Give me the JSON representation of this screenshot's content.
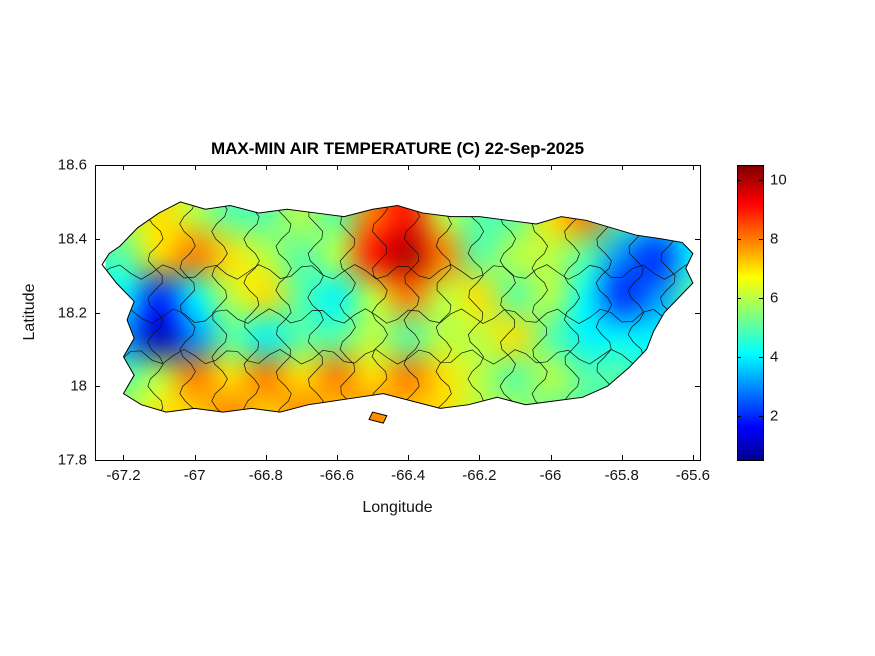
{
  "chart_data": {
    "type": "heatmap",
    "title": "MAX-MIN AIR TEMPERATURE (C) 22-Sep-2025",
    "xlabel": "Longitude",
    "ylabel": "Latitude",
    "xlim": [
      -67.28,
      -65.58
    ],
    "ylim": [
      17.8,
      18.6
    ],
    "x_ticks": [
      -67.2,
      -67,
      -66.8,
      -66.6,
      -66.4,
      -66.2,
      -66,
      -65.8,
      -65.6
    ],
    "x_tick_labels": [
      "-67.2",
      "-67",
      "-66.8",
      "-66.6",
      "-66.4",
      "-66.2",
      "-66",
      "-65.8",
      "-65.6"
    ],
    "y_ticks": [
      17.8,
      18,
      18.2,
      18.4,
      18.6
    ],
    "y_tick_labels": [
      "17.8",
      "18",
      "18.2",
      "18.4",
      "18.6"
    ],
    "grid_on": false,
    "legend": "colorbar-right",
    "colorbar": {
      "ticks": [
        2,
        4,
        6,
        8,
        10
      ],
      "tick_labels": [
        "2",
        "4",
        "6",
        "8",
        "10"
      ],
      "value_range": [
        0.5,
        10.5
      ],
      "colormap": "jet",
      "stops": [
        [
          0.0,
          "#00008F"
        ],
        [
          0.11,
          "#0000FF"
        ],
        [
          0.36,
          "#00FFFF"
        ],
        [
          0.62,
          "#FFFF00"
        ],
        [
          0.87,
          "#FF0000"
        ],
        [
          1.0,
          "#800000"
        ]
      ]
    },
    "grid": {
      "lon_edge_min": -67.25,
      "lon_edge_max": -65.55,
      "lat_edge_max": 18.52,
      "lat_edge_min": 17.86,
      "note": "temperature-difference values (C), rows north to south, cols west (-67.2) to east (-65.6) step 0.1 deg",
      "row_lats": [
        18.45,
        18.35,
        18.25,
        18.15,
        18.05,
        17.95
      ],
      "col_lons": [
        -67.2,
        -67.1,
        -67.0,
        -66.9,
        -66.8,
        -66.7,
        -66.6,
        -66.5,
        -66.4,
        -66.3,
        -66.2,
        -66.1,
        -66.0,
        -65.9,
        -65.8,
        -65.7,
        -65.6
      ],
      "values": [
        [
          6,
          7,
          6,
          5,
          5,
          6,
          5,
          8,
          9,
          6,
          5,
          5,
          7,
          8,
          5,
          4,
          4
        ],
        [
          5,
          7,
          8,
          7,
          6,
          5,
          6,
          9,
          10,
          8,
          5,
          6,
          6,
          5,
          3,
          2,
          4
        ],
        [
          4,
          2,
          4,
          6,
          7,
          5,
          4,
          6,
          8,
          6,
          7,
          5,
          6,
          4,
          2,
          3,
          5
        ],
        [
          3,
          1,
          3,
          5,
          4,
          5,
          5,
          6,
          5,
          6,
          6,
          7,
          5,
          4,
          4,
          4,
          4
        ],
        [
          5,
          6,
          8,
          7,
          8,
          7,
          8,
          7,
          8,
          7,
          6,
          5,
          6,
          5,
          5,
          4,
          4
        ],
        [
          6,
          7,
          7,
          8,
          7,
          8,
          7,
          8,
          7,
          7,
          6,
          6,
          5,
          5,
          4,
          4,
          4
        ]
      ]
    },
    "island_outline": [
      [
        -67.21,
        18.38
      ],
      [
        -67.16,
        18.43
      ],
      [
        -67.1,
        18.47
      ],
      [
        -67.04,
        18.5
      ],
      [
        -66.97,
        18.48
      ],
      [
        -66.9,
        18.49
      ],
      [
        -66.82,
        18.47
      ],
      [
        -66.74,
        18.48
      ],
      [
        -66.66,
        18.47
      ],
      [
        -66.58,
        18.46
      ],
      [
        -66.5,
        18.48
      ],
      [
        -66.43,
        18.49
      ],
      [
        -66.36,
        18.47
      ],
      [
        -66.28,
        18.46
      ],
      [
        -66.2,
        18.46
      ],
      [
        -66.12,
        18.45
      ],
      [
        -66.04,
        18.44
      ],
      [
        -65.97,
        18.46
      ],
      [
        -65.9,
        18.45
      ],
      [
        -65.83,
        18.43
      ],
      [
        -65.76,
        18.41
      ],
      [
        -65.69,
        18.4
      ],
      [
        -65.63,
        18.39
      ],
      [
        -65.6,
        18.36
      ],
      [
        -65.62,
        18.32
      ],
      [
        -65.6,
        18.28
      ],
      [
        -65.64,
        18.24
      ],
      [
        -65.68,
        18.2
      ],
      [
        -65.71,
        18.15
      ],
      [
        -65.73,
        18.1
      ],
      [
        -65.78,
        18.05
      ],
      [
        -65.84,
        18.0
      ],
      [
        -65.91,
        17.97
      ],
      [
        -65.99,
        17.96
      ],
      [
        -66.07,
        17.95
      ],
      [
        -66.15,
        17.97
      ],
      [
        -66.23,
        17.95
      ],
      [
        -66.31,
        17.94
      ],
      [
        -66.39,
        17.96
      ],
      [
        -66.47,
        17.98
      ],
      [
        -66.54,
        17.97
      ],
      [
        -66.61,
        17.96
      ],
      [
        -66.68,
        17.95
      ],
      [
        -66.76,
        17.93
      ],
      [
        -66.84,
        17.94
      ],
      [
        -66.92,
        17.93
      ],
      [
        -67.0,
        17.94
      ],
      [
        -67.08,
        17.93
      ],
      [
        -67.15,
        17.95
      ],
      [
        -67.2,
        17.98
      ],
      [
        -67.17,
        18.03
      ],
      [
        -67.2,
        18.08
      ],
      [
        -67.17,
        18.13
      ],
      [
        -67.19,
        18.18
      ],
      [
        -67.17,
        18.23
      ],
      [
        -67.22,
        18.28
      ],
      [
        -67.26,
        18.33
      ],
      [
        -67.24,
        18.36
      ]
    ],
    "islets": [
      [
        [
          -66.5,
          17.93
        ],
        [
          -66.46,
          17.92
        ],
        [
          -66.47,
          17.9
        ],
        [
          -66.51,
          17.91
        ]
      ]
    ],
    "boundaries": {
      "vertical_lons": [
        -67.11,
        -67.02,
        -66.93,
        -66.84,
        -66.75,
        -66.66,
        -66.57,
        -66.48,
        -66.39,
        -66.3,
        -66.21,
        -66.12,
        -66.03,
        -65.94,
        -65.85,
        -65.76,
        -65.67
      ],
      "horizontal_lats": [
        18.08,
        18.19,
        18.31
      ]
    },
    "colors": {
      "axis": "#000000",
      "boundary_lines": "#111111",
      "background": "#ffffff",
      "text": "#141414"
    }
  }
}
